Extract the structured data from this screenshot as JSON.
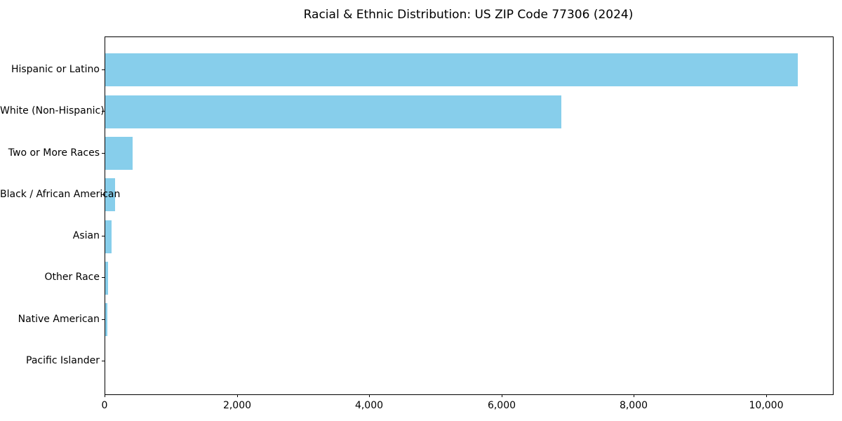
{
  "chart_data": {
    "type": "bar",
    "orientation": "horizontal",
    "title": "Racial & Ethnic Distribution: US ZIP Code 77306 (2024)",
    "categories": [
      "Hispanic or Latino",
      "White (Non-Hispanic)",
      "Two or More Races",
      "Black / African American",
      "Asian",
      "Other Race",
      "Native American",
      "Pacific Islander"
    ],
    "values": [
      10470,
      6900,
      410,
      150,
      100,
      40,
      30,
      0
    ],
    "xlabel": "",
    "ylabel": "",
    "xlim": [
      0,
      11000
    ],
    "xticks": [
      0,
      2000,
      4000,
      6000,
      8000,
      10000
    ],
    "xtick_labels": [
      "0",
      "2,000",
      "4,000",
      "6,000",
      "8,000",
      "10,000"
    ],
    "bar_color": "#87CEEB",
    "background_color": "#ffffff",
    "spine_color": "#000000",
    "text_color": "#000000",
    "grid": false,
    "legend": null
  }
}
